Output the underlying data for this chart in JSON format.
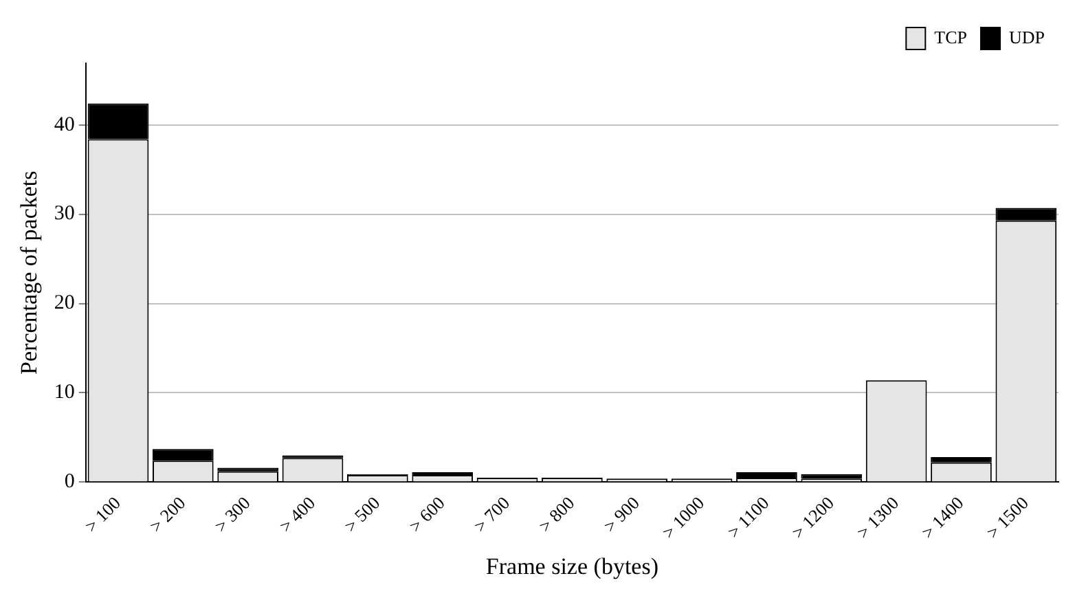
{
  "chart_data": {
    "type": "bar",
    "stacked": true,
    "xlabel": "Frame size (bytes)",
    "ylabel": "Percentage of packets",
    "categories": [
      "> 100",
      "> 200",
      "> 300",
      "> 400",
      "> 500",
      "> 600",
      "> 700",
      "> 800",
      "> 900",
      "> 1000",
      "> 1100",
      "> 1200",
      "> 1300",
      "> 1400",
      "> 1500"
    ],
    "series": [
      {
        "name": "TCP",
        "color": "#e5e5e5",
        "values": [
          38.4,
          2.4,
          1.2,
          2.7,
          0.8,
          0.8,
          0.5,
          0.5,
          0.4,
          0.4,
          0.5,
          0.4,
          11.4,
          2.2,
          29.3
        ]
      },
      {
        "name": "UDP",
        "color": "#000000",
        "values": [
          4.0,
          1.3,
          0.4,
          0.3,
          0.1,
          0.3,
          0,
          0,
          0,
          0,
          0.6,
          0.5,
          0,
          0.6,
          1.4
        ]
      }
    ],
    "ylim": [
      0,
      46.9
    ],
    "yticks": [
      0,
      10,
      20,
      30,
      40
    ],
    "grid": "y",
    "legend": "top right"
  }
}
